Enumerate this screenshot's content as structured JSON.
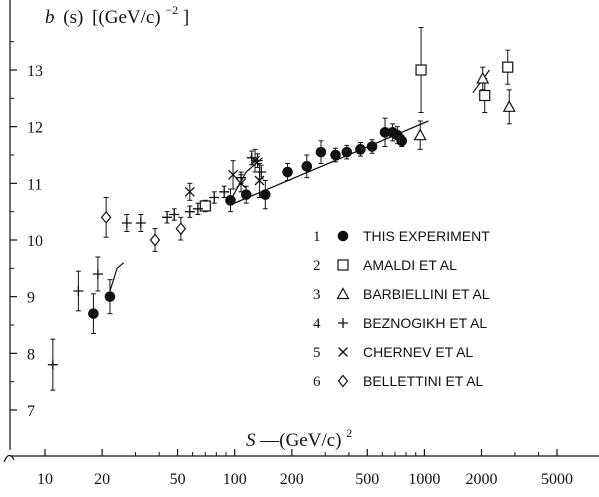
{
  "chart_data": {
    "type": "scatter",
    "ylabel_parts": {
      "b": "b",
      "s": "(s)",
      "unit": "[(GeV/c)",
      "exp": "−2",
      "close": "]"
    },
    "xlabel_parts": {
      "s": "S",
      "unit": "—(GeV/c)",
      "exp": "2"
    },
    "x_scale": "log",
    "xlim": [
      8,
      6500
    ],
    "ylim": [
      6.6,
      13.8
    ],
    "x_ticks": [
      10,
      20,
      50,
      100,
      200,
      500,
      1000,
      2000,
      5000
    ],
    "y_ticks": [
      7,
      8,
      9,
      10,
      11,
      12,
      13
    ],
    "legend_position": "lower-right",
    "series": [
      {
        "name": "THIS EXPERIMENT",
        "number": "1",
        "marker": "filled-circle",
        "points": [
          {
            "x": 18,
            "y": 8.7,
            "err": 0.35
          },
          {
            "x": 22,
            "y": 9.0,
            "err": 0.3
          },
          {
            "x": 95,
            "y": 10.7,
            "err": 0.2
          },
          {
            "x": 115,
            "y": 10.8,
            "err": 0.15
          },
          {
            "x": 145,
            "y": 10.8,
            "err": 0.25
          },
          {
            "x": 190,
            "y": 11.2,
            "err": 0.15
          },
          {
            "x": 240,
            "y": 11.3,
            "err": 0.2
          },
          {
            "x": 285,
            "y": 11.55,
            "err": 0.2
          },
          {
            "x": 340,
            "y": 11.5,
            "err": 0.12
          },
          {
            "x": 390,
            "y": 11.55,
            "err": 0.12
          },
          {
            "x": 460,
            "y": 11.6,
            "err": 0.12
          },
          {
            "x": 530,
            "y": 11.65,
            "err": 0.12
          },
          {
            "x": 620,
            "y": 11.9,
            "err": 0.25
          },
          {
            "x": 680,
            "y": 11.9,
            "err": 0.15
          },
          {
            "x": 720,
            "y": 11.85,
            "err": 0.15
          },
          {
            "x": 760,
            "y": 11.75,
            "err": 0.1
          }
        ]
      },
      {
        "name": "AMALDI ET AL",
        "number": "2",
        "marker": "open-square",
        "points": [
          {
            "x": 70,
            "y": 10.6,
            "err": 0.1
          },
          {
            "x": 960,
            "y": 13.0,
            "err": 0.75
          },
          {
            "x": 2080,
            "y": 12.55,
            "err": 0.3
          },
          {
            "x": 2750,
            "y": 13.05,
            "err": 0.3
          }
        ]
      },
      {
        "name": "BARBIELLINI ET AL",
        "number": "3",
        "marker": "open-triangle",
        "points": [
          {
            "x": 950,
            "y": 11.85,
            "err": 0.25
          },
          {
            "x": 2030,
            "y": 12.85,
            "err": 0.2
          },
          {
            "x": 2800,
            "y": 12.35,
            "err": 0.3
          }
        ]
      },
      {
        "name": "BEZNOGIKH ET AL",
        "number": "4",
        "marker": "plus",
        "points": [
          {
            "x": 11,
            "y": 7.8,
            "err": 0.45
          },
          {
            "x": 15,
            "y": 9.1,
            "err": 0.35
          },
          {
            "x": 19,
            "y": 9.4,
            "err": 0.3
          },
          {
            "x": 27,
            "y": 10.3,
            "err": 0.15
          },
          {
            "x": 32,
            "y": 10.3,
            "err": 0.15
          },
          {
            "x": 44,
            "y": 10.4,
            "err": 0.1
          },
          {
            "x": 48,
            "y": 10.45,
            "err": 0.1
          },
          {
            "x": 58,
            "y": 10.5,
            "err": 0.1
          },
          {
            "x": 64,
            "y": 10.55,
            "err": 0.1
          },
          {
            "x": 78,
            "y": 10.75,
            "err": 0.1
          },
          {
            "x": 88,
            "y": 10.85,
            "err": 0.1
          },
          {
            "x": 108,
            "y": 11.1,
            "err": 0.1
          },
          {
            "x": 123,
            "y": 11.45,
            "err": 0.12
          },
          {
            "x": 132,
            "y": 11.4,
            "err": 0.12
          },
          {
            "x": 138,
            "y": 11.2,
            "err": 0.12
          }
        ]
      },
      {
        "name": "CHERNEV ET AL",
        "number": "5",
        "marker": "cross",
        "points": [
          {
            "x": 58,
            "y": 10.85,
            "err": 0.15
          },
          {
            "x": 98,
            "y": 11.15,
            "err": 0.25
          },
          {
            "x": 108,
            "y": 11.0,
            "err": 0.15
          },
          {
            "x": 128,
            "y": 11.4,
            "err": 0.2
          },
          {
            "x": 135,
            "y": 11.05,
            "err": 0.3
          }
        ]
      },
      {
        "name": "BELLETTINI ET AL",
        "number": "6",
        "marker": "open-diamond",
        "points": [
          {
            "x": 21,
            "y": 10.4,
            "err": 0.35
          },
          {
            "x": 38,
            "y": 10.0,
            "err": 0.2
          },
          {
            "x": 52,
            "y": 10.2,
            "err": 0.2
          }
        ]
      }
    ],
    "fit_line": {
      "points": [
        [
          95,
          10.62
        ],
        [
          1050,
          12.1
        ]
      ]
    },
    "short_curves": [
      [
        [
          22,
          9.1
        ],
        [
          24,
          9.5
        ],
        [
          26,
          9.6
        ]
      ],
      [
        [
          95,
          10.7
        ],
        [
          115,
          11.2
        ],
        [
          140,
          11.45
        ]
      ],
      [
        [
          1800,
          12.6
        ],
        [
          2050,
          12.85
        ],
        [
          2200,
          13.0
        ]
      ]
    ]
  }
}
